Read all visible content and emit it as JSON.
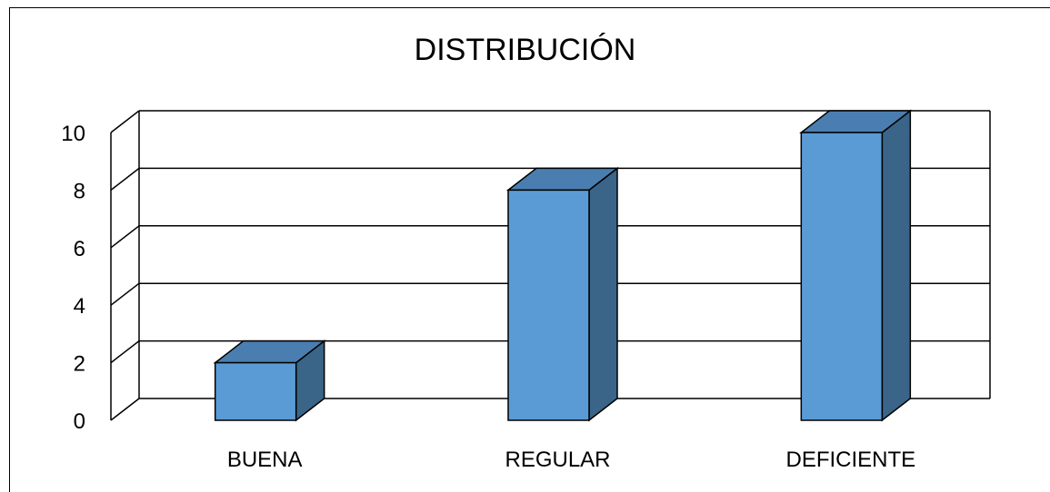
{
  "chart_data": {
    "type": "bar",
    "title": "DISTRIBUCIÓN",
    "categories": [
      "BUENA",
      "REGULAR",
      "DEFICIENTE"
    ],
    "values": [
      2,
      8,
      10
    ],
    "ylim": [
      0,
      10
    ],
    "yticks": [
      "0",
      "2",
      "4",
      "6",
      "8",
      "10"
    ],
    "grid": true,
    "three_d": true,
    "legend": "none",
    "colors": {
      "bar_front": "#5b9bd5",
      "bar_side": "#3a6589",
      "bar_top": "#4a7eb0",
      "outline": "#000000"
    }
  }
}
